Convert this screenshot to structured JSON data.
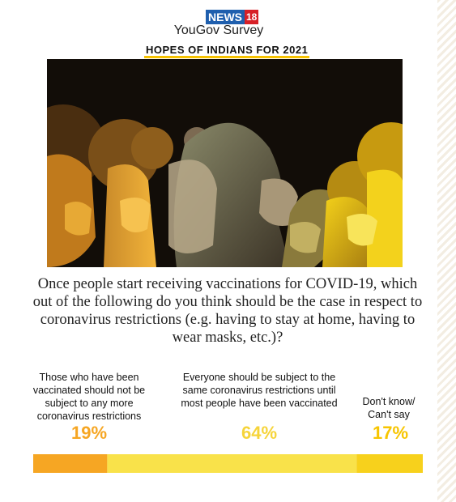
{
  "brand": {
    "logo_part1": "NEWS",
    "logo_part2": "18",
    "subtitle": "YouGov Survey"
  },
  "headline": "HOPES OF INDIANS FOR 2021",
  "question": "Once people start receiving vaccinations for COVID-19, which out of the following do you think should be the case in respect to coronavirus restrictions (e.g. having to stay at home, having to wear masks, etc.)?",
  "colors": {
    "accent": "#f6c200",
    "bar_1": "#f6a623",
    "bar_2": "#f9e24a",
    "bar_3": "#f7d11c"
  },
  "chart_data": {
    "type": "bar",
    "orientation": "horizontal-stacked",
    "categories": [
      "Those who have been vaccinated should not be subject to any more coronavirus restrictions",
      "Everyone should be subject to the same coronavirus restrictions until most people have been vaccinated",
      "Don't know/ Can't say"
    ],
    "values": [
      19,
      64,
      17
    ],
    "data_labels": [
      "19%",
      "64%",
      "17%"
    ],
    "colors": [
      "#f6a623",
      "#f9e24a",
      "#f7d11c"
    ]
  }
}
